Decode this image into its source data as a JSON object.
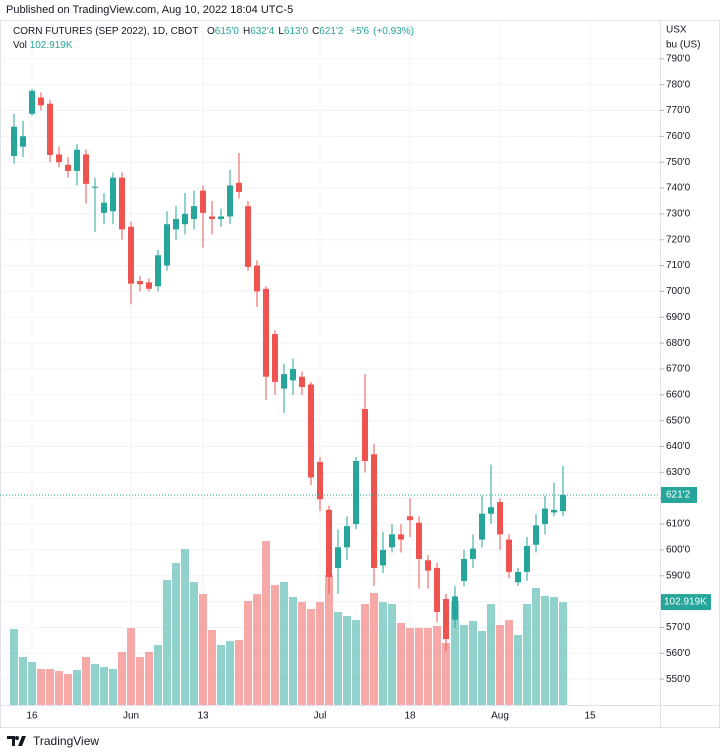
{
  "header": {
    "published": "Published on TradingView.com, Aug 10, 2022 18:04 UTC-5"
  },
  "chart_data": {
    "type": "candlestick",
    "title": "CORN FUTURES (SEP 2022), 1D, CBOT",
    "legend": [
      {
        "key": "O",
        "label": "615'0"
      },
      {
        "key": "H",
        "label": "632'4"
      },
      {
        "key": "L",
        "label": "613'0"
      },
      {
        "key": "C",
        "label": "621'2"
      }
    ],
    "change_label": "+5'6",
    "change_pct_label": "(+0.93%)",
    "y_axis_label": [
      "USX",
      "bu (US)"
    ],
    "categories": [
      null,
      null,
      "16",
      null,
      null,
      null,
      null,
      null,
      null,
      null,
      null,
      null,
      null,
      "Jun",
      null,
      null,
      null,
      null,
      null,
      null,
      null,
      "13",
      null,
      null,
      null,
      null,
      null,
      null,
      null,
      null,
      null,
      null,
      null,
      null,
      "Jul",
      null,
      null,
      null,
      null,
      null,
      null,
      null,
      null,
      null,
      "18",
      null,
      null,
      null,
      null,
      null,
      null,
      null,
      null,
      null,
      "Aug",
      null,
      null,
      null,
      null,
      null,
      null,
      null,
      null,
      null,
      "15"
    ],
    "open": [
      752.4,
      756,
      768.7,
      775,
      772.6,
      753,
      749,
      746.6,
      753,
      740.5,
      730.4,
      731,
      744,
      725,
      704,
      703.5,
      702,
      710,
      724,
      726,
      728,
      739,
      729,
      728,
      729,
      742,
      733,
      710,
      701,
      683.5,
      662.4,
      665.6,
      667,
      664,
      634,
      615.5,
      593,
      601,
      610,
      654.5,
      637,
      594,
      601,
      606,
      613,
      610.5,
      596,
      593,
      581,
      573,
      588,
      596.5,
      604,
      614,
      618.5,
      604,
      587.5,
      591.5,
      602,
      610,
      614.5,
      615,
      null,
      null,
      null
    ],
    "high": [
      768.7,
      766,
      778.4,
      777,
      774,
      756,
      752,
      757,
      755,
      744,
      738,
      746,
      746,
      727,
      706,
      705,
      716,
      731,
      733,
      738,
      739,
      741,
      735,
      732,
      747,
      753.5,
      735,
      712,
      702,
      685,
      672,
      674,
      669,
      665,
      636,
      617,
      608,
      613,
      636,
      668,
      641,
      607,
      610,
      610,
      620,
      613,
      598,
      595,
      583,
      586,
      600,
      606,
      621,
      633,
      620,
      606,
      593,
      605,
      614,
      621,
      626,
      632.5,
      null,
      null,
      null
    ],
    "low": [
      749.4,
      752,
      768,
      770,
      750,
      748,
      744,
      741,
      734,
      723,
      726,
      726,
      720,
      695,
      700,
      700,
      700,
      708,
      720,
      722,
      724,
      717,
      722,
      725,
      726,
      736,
      708,
      694,
      658,
      660,
      653,
      660,
      660,
      625,
      615,
      583,
      583,
      596,
      608,
      630,
      586,
      591,
      599,
      599,
      605,
      585,
      585,
      572,
      561,
      570,
      586,
      593,
      601,
      610,
      600,
      589,
      586,
      588,
      599,
      606,
      613,
      613,
      null,
      null,
      null
    ],
    "close": [
      763.7,
      760,
      777.6,
      772,
      752.8,
      750,
      746.6,
      754.8,
      741.6,
      740.5,
      734.3,
      744,
      724,
      703,
      702.8,
      701,
      714,
      726,
      728,
      730,
      733,
      730.4,
      728,
      729,
      741,
      738.5,
      709.5,
      700,
      667,
      665,
      668,
      670,
      663,
      628,
      619.6,
      589.5,
      601,
      609.2,
      634.4,
      634.4,
      593,
      600,
      606,
      604,
      611.5,
      596.5,
      592,
      576,
      565.5,
      582,
      596.5,
      600.5,
      614,
      616.5,
      606,
      591.5,
      591.5,
      601.5,
      609.5,
      616,
      615.5,
      621.25,
      null,
      null,
      null
    ],
    "last_price_label": "621'2",
    "up_color": "#26a69a",
    "down_color": "#ef5350",
    "volume": {
      "name": "Vol",
      "last_label": "102.919K",
      "ylim": [
        0,
        300000
      ],
      "values": [
        76000,
        48000,
        43000,
        36000,
        36000,
        34000,
        31000,
        35000,
        48000,
        41000,
        38000,
        36000,
        53000,
        77000,
        48000,
        53000,
        60000,
        125000,
        142000,
        156000,
        123000,
        111000,
        75000,
        60000,
        64000,
        65000,
        104000,
        111000,
        164000,
        120000,
        123000,
        108000,
        103000,
        96000,
        103000,
        130000,
        93000,
        89000,
        85000,
        101000,
        112000,
        103000,
        101000,
        82000,
        77000,
        77000,
        77000,
        79000,
        62000,
        104000,
        80000,
        84000,
        74000,
        101000,
        80000,
        85000,
        70000,
        101000,
        117000,
        109000,
        108000,
        102919,
        null,
        null,
        null
      ]
    },
    "ylim": [
      540,
      805
    ],
    "yticks": [
      {
        "value": 550,
        "label": "550'0"
      },
      {
        "value": 560,
        "label": "560'0"
      },
      {
        "value": 570,
        "label": "570'0"
      },
      {
        "value": 580,
        "label": "580'0"
      },
      {
        "value": 590,
        "label": "590'0"
      },
      {
        "value": 600,
        "label": "600'0"
      },
      {
        "value": 610,
        "label": "610'0"
      },
      {
        "value": 620,
        "label": "620'0"
      },
      {
        "value": 630,
        "label": "630'0"
      },
      {
        "value": 640,
        "label": "640'0"
      },
      {
        "value": 650,
        "label": "650'0"
      },
      {
        "value": 660,
        "label": "660'0"
      },
      {
        "value": 670,
        "label": "670'0"
      },
      {
        "value": 680,
        "label": "680'0"
      },
      {
        "value": 690,
        "label": "690'0"
      },
      {
        "value": 700,
        "label": "700'0"
      },
      {
        "value": 710,
        "label": "710'0"
      },
      {
        "value": 720,
        "label": "720'0"
      },
      {
        "value": 730,
        "label": "730'0"
      },
      {
        "value": 740,
        "label": "740'0"
      },
      {
        "value": 750,
        "label": "750'0"
      },
      {
        "value": 760,
        "label": "760'0"
      },
      {
        "value": 770,
        "label": "770'0"
      },
      {
        "value": 780,
        "label": "780'0"
      },
      {
        "value": 790,
        "label": "790'0"
      }
    ],
    "grid": true
  },
  "footer": {
    "brand": "TradingView"
  }
}
